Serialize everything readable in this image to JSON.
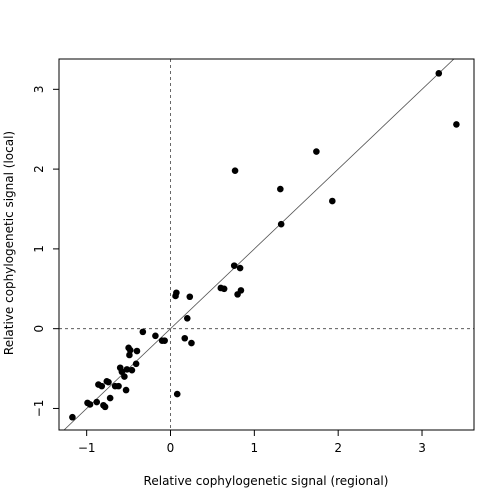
{
  "chart_data": {
    "type": "scatter",
    "title": "",
    "xlabel": "Relative cophylogenetic signal (regional)",
    "ylabel": "Relative cophylogenetic signal (local)",
    "xlim": [
      -1.33,
      3.62
    ],
    "ylim": [
      -1.27,
      3.38
    ],
    "xticks": [
      -1,
      0,
      1,
      2,
      3
    ],
    "yticks": [
      -1,
      0,
      1,
      2,
      3
    ],
    "xtick_labels": [
      "−1",
      "0",
      "1",
      "2",
      "3"
    ],
    "ytick_labels": [
      "−1",
      "0",
      "1",
      "2",
      "3"
    ],
    "grid": false,
    "reference_lines": [
      {
        "kind": "vertical",
        "x": 0,
        "style": "dashed"
      },
      {
        "kind": "horizontal",
        "y": 0,
        "style": "dashed"
      },
      {
        "kind": "identity",
        "slope": 1,
        "intercept": 0,
        "style": "solid"
      }
    ],
    "series": [
      {
        "points": [
          [
            -1.17,
            -1.11
          ],
          [
            -0.99,
            -0.93
          ],
          [
            -0.96,
            -0.95
          ],
          [
            -0.88,
            -0.92
          ],
          [
            -0.86,
            -0.7
          ],
          [
            -0.82,
            -0.72
          ],
          [
            -0.8,
            -0.96
          ],
          [
            -0.78,
            -0.98
          ],
          [
            -0.76,
            -0.66
          ],
          [
            -0.74,
            -0.67
          ],
          [
            -0.72,
            -0.87
          ],
          [
            -0.66,
            -0.72
          ],
          [
            -0.62,
            -0.72
          ],
          [
            -0.6,
            -0.49
          ],
          [
            -0.58,
            -0.54
          ],
          [
            -0.55,
            -0.6
          ],
          [
            -0.53,
            -0.77
          ],
          [
            -0.52,
            -0.51
          ],
          [
            -0.5,
            -0.24
          ],
          [
            -0.49,
            -0.33
          ],
          [
            -0.48,
            -0.27
          ],
          [
            -0.46,
            -0.52
          ],
          [
            -0.41,
            -0.44
          ],
          [
            -0.4,
            -0.28
          ],
          [
            -0.33,
            -0.04
          ],
          [
            -0.18,
            -0.09
          ],
          [
            -0.1,
            -0.15
          ],
          [
            -0.07,
            -0.15
          ],
          [
            0.06,
            0.41
          ],
          [
            0.07,
            0.45
          ],
          [
            0.08,
            -0.82
          ],
          [
            0.17,
            -0.12
          ],
          [
            0.2,
            0.13
          ],
          [
            0.23,
            0.4
          ],
          [
            0.25,
            -0.18
          ],
          [
            0.6,
            0.51
          ],
          [
            0.64,
            0.5
          ],
          [
            0.76,
            0.79
          ],
          [
            0.77,
            1.98
          ],
          [
            0.8,
            0.43
          ],
          [
            0.83,
            0.76
          ],
          [
            0.84,
            0.48
          ],
          [
            1.31,
            1.75
          ],
          [
            1.32,
            1.31
          ],
          [
            1.74,
            2.22
          ],
          [
            1.93,
            1.6
          ],
          [
            3.2,
            3.2
          ],
          [
            3.41,
            2.56
          ]
        ]
      }
    ]
  }
}
